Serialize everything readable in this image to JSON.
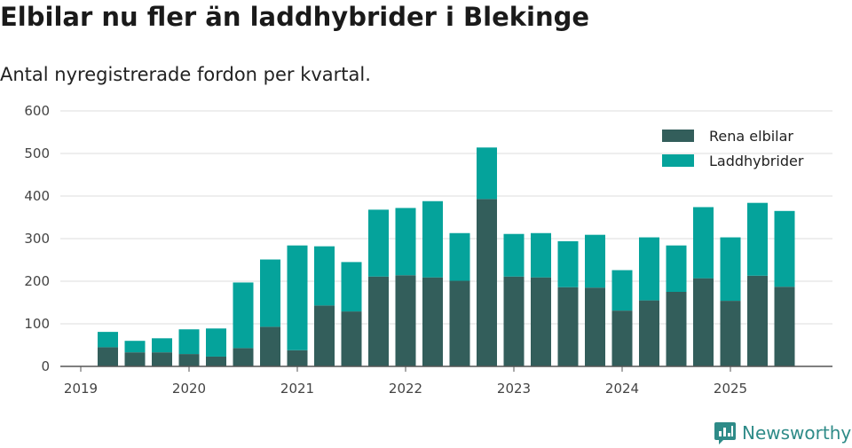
{
  "title": "Elbilar nu fler än laddhybrider i Blekinge",
  "subtitle": "Antal nyregistrerade fordon per kvartal.",
  "brand": "Newsworthy",
  "colors": {
    "electric": "#335e5b",
    "hybrid": "#05a39b",
    "grid": "#dddddd",
    "axis": "#555555"
  },
  "chart_data": {
    "type": "bar",
    "stacked": true,
    "title": "Elbilar nu fler än laddhybrider i Blekinge",
    "subtitle": "Antal nyregistrerade fordon per kvartal.",
    "xlabel": "",
    "ylabel": "",
    "ylim": [
      0,
      600
    ],
    "yticks": [
      0,
      100,
      200,
      300,
      400,
      500,
      600
    ],
    "x_tick_labels": [
      "2019",
      "2020",
      "2021",
      "2022",
      "2023",
      "2024",
      "2025"
    ],
    "legend": "top-right",
    "categories": [
      "2019Q2",
      "2019Q3",
      "2019Q4",
      "2020Q1",
      "2020Q2",
      "2020Q3",
      "2020Q4",
      "2021Q1",
      "2021Q2",
      "2021Q3",
      "2021Q4",
      "2022Q1",
      "2022Q2",
      "2022Q3",
      "2022Q4",
      "2023Q1",
      "2023Q2",
      "2023Q3",
      "2023Q4",
      "2024Q1",
      "2024Q2",
      "2024Q3",
      "2024Q4",
      "2025Q1",
      "2025Q2",
      "2025Q3"
    ],
    "series": [
      {
        "name": "Rena elbilar",
        "color": "#335e5b",
        "values": [
          45,
          33,
          33,
          29,
          23,
          43,
          93,
          38,
          143,
          129,
          211,
          214,
          209,
          201,
          393,
          211,
          209,
          186,
          185,
          131,
          155,
          175,
          207,
          154,
          213,
          187
        ]
      },
      {
        "name": "Laddhybrider",
        "color": "#05a39b",
        "values": [
          36,
          27,
          33,
          58,
          66,
          154,
          158,
          246,
          139,
          116,
          157,
          158,
          179,
          112,
          121,
          100,
          104,
          108,
          124,
          95,
          148,
          109,
          167,
          149,
          171,
          178
        ]
      }
    ]
  }
}
